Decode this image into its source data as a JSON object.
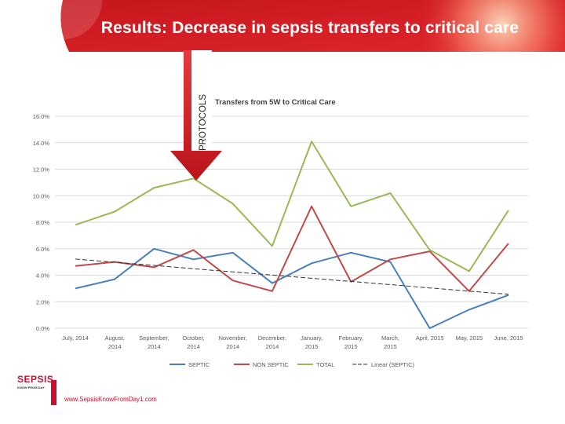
{
  "slide": {
    "title": "Results: Decrease in sepsis transfers to critical care",
    "callout_label": "PROTOCOLS",
    "logo_text": "SEPSIS",
    "logo_subtext": "KNOW FROM DAY",
    "footer_url": "www.SepsisKnowFromDay1.com",
    "brand_color": "#d8232a"
  },
  "chart_data": {
    "type": "line",
    "title": "Transfers from 5W to Critical Care",
    "xlabel": "",
    "ylabel": "",
    "ylim": [
      0,
      16
    ],
    "grid": true,
    "legend_position": "bottom",
    "y_ticks": [
      "0.0%",
      "2.0%",
      "4.0%",
      "6.0%",
      "8.0%",
      "10.0%",
      "12.0%",
      "14.0%",
      "16.0%"
    ],
    "categories": [
      [
        "July, 2014",
        ""
      ],
      [
        "August,",
        "2014"
      ],
      [
        "September,",
        "2014"
      ],
      [
        "October,",
        "2014"
      ],
      [
        "November,",
        "2014"
      ],
      [
        "December,",
        "2014"
      ],
      [
        "January,",
        "2015"
      ],
      [
        "February,",
        "2015"
      ],
      [
        "March,",
        "2015"
      ],
      [
        "April, 2015",
        ""
      ],
      [
        "May, 2015",
        ""
      ],
      [
        "June, 2015",
        ""
      ]
    ],
    "series": [
      {
        "name": "SEPTIC",
        "color": "#4a7ebb",
        "values": [
          3.0,
          3.7,
          6.0,
          5.2,
          5.7,
          3.4,
          4.9,
          5.7,
          5.0,
          0.0,
          1.4,
          2.5
        ]
      },
      {
        "name": "NON SEPTIC",
        "color": "#be4b48",
        "values": [
          4.7,
          5.0,
          4.6,
          5.9,
          3.6,
          2.8,
          9.2,
          3.5,
          5.2,
          5.8,
          2.8,
          6.4
        ]
      },
      {
        "name": "TOTAL",
        "color": "#98b954",
        "values": [
          7.8,
          8.8,
          10.6,
          11.3,
          9.4,
          6.2,
          14.1,
          9.2,
          10.2,
          5.9,
          4.3,
          8.9
        ]
      },
      {
        "name": "Linear (SEPTIC)",
        "color": "#333333",
        "dashed": true,
        "values": [
          5.22,
          4.98,
          4.74,
          4.49,
          4.25,
          4.01,
          3.77,
          3.53,
          3.29,
          3.04,
          2.8,
          2.56
        ]
      }
    ]
  }
}
